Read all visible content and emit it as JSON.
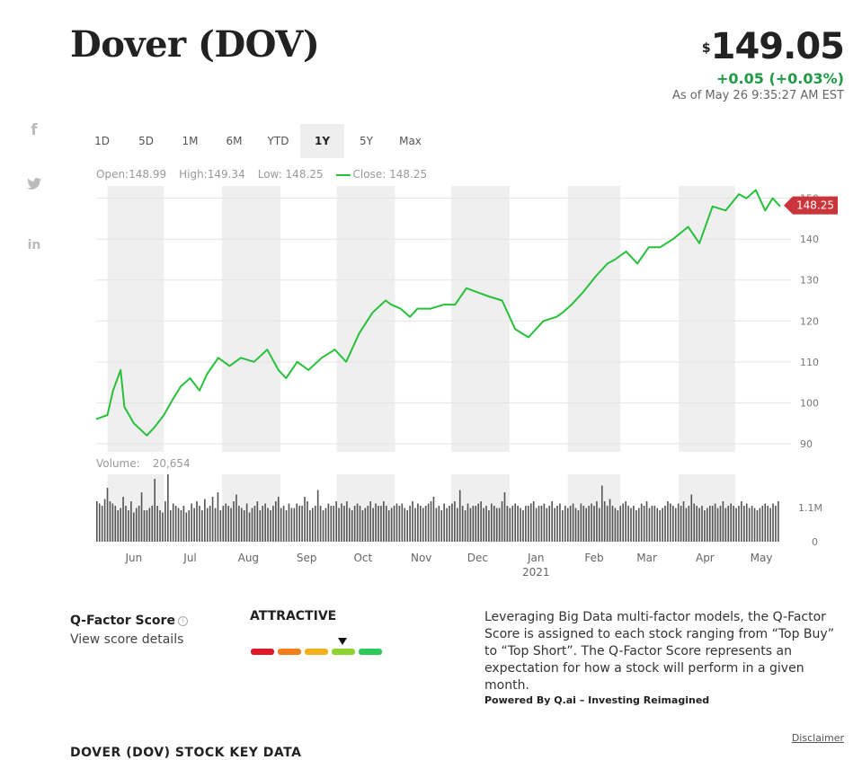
{
  "header": {
    "title": "Dover (DOV)",
    "currency_symbol": "$",
    "price": "149.05",
    "change": "+0.05 (+0.03%)",
    "as_of": "As of May 26 9:35:27 AM EST"
  },
  "social": {
    "facebook": "f",
    "twitter": "🐦",
    "linkedin": "in"
  },
  "range_tabs": [
    "1D",
    "5D",
    "1M",
    "6M",
    "YTD",
    "1Y",
    "5Y",
    "Max"
  ],
  "active_range": "1Y",
  "ohlc": {
    "open": "Open:148.99",
    "high": "High:149.34",
    "low": "Low: 148.25",
    "close": "Close: 148.25"
  },
  "volume_label": {
    "label": "Volume:",
    "value": "20,654"
  },
  "colors": {
    "line": "#27c03a",
    "price_tag": "#c9353a",
    "band": "#efefef",
    "volume_bar": "#555555",
    "change": "#1f9a45"
  },
  "chart_data": {
    "type": "line",
    "last_price_label": "148.25",
    "ylim": [
      88,
      153
    ],
    "yticks": [
      90,
      100,
      110,
      120,
      130,
      140,
      150
    ],
    "x": [
      "2020-05-26",
      "2020-06-01",
      "2020-06-04",
      "2020-06-08",
      "2020-06-10",
      "2020-06-15",
      "2020-06-22",
      "2020-06-26",
      "2020-07-01",
      "2020-07-06",
      "2020-07-10",
      "2020-07-15",
      "2020-07-20",
      "2020-07-24",
      "2020-07-30",
      "2020-08-05",
      "2020-08-11",
      "2020-08-18",
      "2020-08-25",
      "2020-08-31",
      "2020-09-04",
      "2020-09-10",
      "2020-09-16",
      "2020-09-23",
      "2020-09-30",
      "2020-10-06",
      "2020-10-13",
      "2020-10-20",
      "2020-10-27",
      "2020-10-30",
      "2020-11-04",
      "2020-11-09",
      "2020-11-13",
      "2020-11-20",
      "2020-11-27",
      "2020-12-03",
      "2020-12-09",
      "2020-12-15",
      "2020-12-21",
      "2020-12-28",
      "2021-01-04",
      "2021-01-11",
      "2021-01-19",
      "2021-01-26",
      "2021-01-29",
      "2021-02-03",
      "2021-02-09",
      "2021-02-16",
      "2021-02-22",
      "2021-02-26",
      "2021-03-04",
      "2021-03-10",
      "2021-03-16",
      "2021-03-22",
      "2021-03-29",
      "2021-04-06",
      "2021-04-12",
      "2021-04-19",
      "2021-04-26",
      "2021-05-03",
      "2021-05-07",
      "2021-05-12",
      "2021-05-17",
      "2021-05-21",
      "2021-05-25"
    ],
    "y": [
      96,
      97,
      103,
      108,
      99,
      95,
      92,
      94,
      97,
      101,
      104,
      106,
      103,
      107,
      111,
      109,
      111,
      110,
      113,
      108,
      106,
      110,
      108,
      111,
      113,
      110,
      117,
      122,
      125,
      124,
      123,
      121,
      123,
      123,
      124,
      124,
      128,
      127,
      126,
      125,
      118,
      116,
      120,
      121,
      122,
      124,
      127,
      131,
      134,
      135,
      137,
      134,
      138,
      138,
      140,
      143,
      139,
      148,
      147,
      151,
      150,
      152,
      147,
      150,
      148
    ],
    "x_axis_labels": [
      "Jun",
      "Jul",
      "Aug",
      "Sep",
      "Oct",
      "Nov",
      "Dec",
      "Jan",
      "Feb",
      "Mar",
      "Apr",
      "May"
    ],
    "year_label": "2021",
    "volume": {
      "ylim_label_top": "1.1M",
      "ylim_label_bottom": "0",
      "values": [
        0.9,
        0.85,
        0.8,
        0.95,
        1.2,
        0.9,
        0.85,
        0.8,
        0.7,
        0.75,
        1.0,
        0.8,
        0.7,
        0.9,
        0.65,
        0.75,
        0.8,
        1.1,
        0.7,
        0.7,
        0.75,
        0.8,
        1.4,
        0.8,
        0.7,
        0.65,
        0.9,
        1.5,
        0.7,
        0.85,
        0.8,
        0.75,
        0.7,
        0.8,
        0.65,
        0.7,
        0.85,
        0.75,
        0.9,
        0.8,
        0.7,
        0.95,
        0.75,
        0.8,
        1.0,
        0.75,
        1.1,
        0.7,
        0.8,
        0.85,
        0.8,
        0.75,
        0.9,
        1.05,
        0.8,
        0.75,
        0.7,
        0.85,
        0.65,
        0.75,
        0.8,
        0.9,
        0.7,
        0.8,
        0.85,
        0.75,
        0.7,
        0.8,
        0.9,
        1.0,
        0.75,
        0.8,
        0.7,
        0.85,
        0.75,
        0.75,
        0.85,
        0.8,
        0.8,
        1.0,
        0.9,
        0.7,
        0.75,
        0.8,
        1.15,
        0.8,
        0.7,
        0.75,
        0.85,
        0.8,
        0.8,
        0.9,
        0.75,
        0.85,
        0.8,
        0.9,
        0.75,
        0.7,
        0.8,
        0.85,
        0.8,
        0.7,
        0.75,
        0.8,
        0.9,
        0.75,
        0.85,
        0.8,
        0.8,
        0.9,
        0.8,
        0.7,
        0.75,
        0.8,
        0.85,
        0.8,
        0.85,
        0.75,
        0.7,
        0.8,
        0.9,
        0.75,
        0.85,
        0.8,
        0.75,
        0.8,
        0.85,
        0.9,
        1.0,
        0.75,
        0.8,
        0.7,
        0.85,
        0.75,
        0.8,
        0.85,
        0.9,
        0.75,
        1.15,
        0.8,
        0.7,
        0.85,
        0.75,
        0.8,
        0.8,
        0.85,
        0.9,
        0.75,
        0.8,
        0.7,
        0.85,
        0.8,
        0.75,
        0.75,
        0.9,
        1.1,
        0.8,
        0.75,
        0.8,
        0.85,
        0.8,
        0.75,
        0.7,
        0.8,
        0.8,
        0.85,
        0.9,
        0.75,
        0.8,
        0.8,
        0.85,
        0.75,
        0.8,
        0.9,
        0.75,
        0.8,
        0.85,
        0.7,
        0.8,
        0.75,
        0.8,
        0.85,
        0.75,
        0.7,
        0.85,
        0.8,
        0.75,
        0.8,
        0.85,
        0.8,
        0.9,
        0.75,
        1.25,
        0.9,
        0.8,
        0.95,
        0.8,
        0.75,
        0.7,
        0.8,
        0.85,
        0.9,
        0.8,
        0.75,
        0.8,
        0.7,
        0.75,
        0.85,
        0.8,
        0.9,
        0.75,
        0.8,
        0.8,
        0.75,
        0.7,
        0.75,
        0.8,
        0.9,
        0.85,
        0.8,
        0.75,
        0.85,
        0.8,
        0.9,
        0.75,
        0.8,
        1.05,
        0.85,
        0.8,
        0.75,
        0.8,
        0.7,
        0.75,
        0.8,
        0.8,
        0.85,
        0.75,
        0.8,
        0.9,
        0.75,
        0.8,
        0.85,
        0.8,
        0.75,
        0.8,
        0.9,
        0.8,
        0.85,
        0.75,
        0.8,
        0.75,
        0.7,
        0.75,
        0.8,
        0.85,
        0.8,
        0.75,
        0.85,
        0.8,
        0.9
      ]
    }
  },
  "qfactor": {
    "title": "Q-Factor Score",
    "info_icon": "i",
    "link": "View score details",
    "rating": "ATTRACTIVE",
    "scale_colors": [
      "#e0192a",
      "#f08019",
      "#f2b01c",
      "#8ed32f",
      "#2ec95b"
    ],
    "rating_level": 4,
    "description": "Leveraging Big Data multi-factor models, the Q-Factor Score is assigned to each stock ranging from “Top Buy” to “Top Short”. The Q-Factor Score represents an expectation for how a stock will perform in a given month.",
    "powered": "Powered By Q.ai – Investing Reimagined"
  },
  "footer": {
    "disclaimer": "Disclaimer",
    "section_title": "DOVER (DOV) STOCK KEY DATA"
  }
}
